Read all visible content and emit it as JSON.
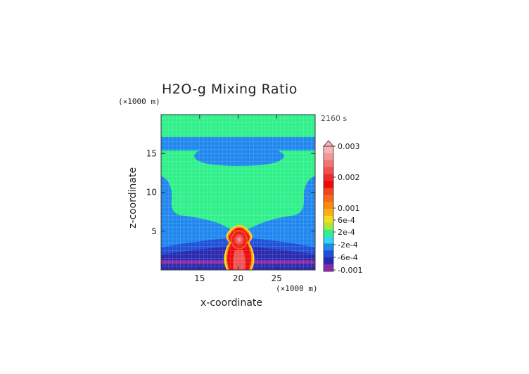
{
  "chart_data": {
    "type": "heatmap",
    "title": "H2O-g Mixing Ratio",
    "time_label": "2160 s",
    "xlabel": "x-coordinate",
    "ylabel": "z-coordinate",
    "x_unit": "(×1000 m)",
    "y_unit": "(×1000 m)",
    "x_range": [
      10,
      30
    ],
    "y_range": [
      0,
      20
    ],
    "x_ticks": [
      15,
      20,
      25
    ],
    "y_ticks": [
      5,
      10,
      15
    ],
    "grid": true,
    "colorbar": {
      "labels": [
        "0.003",
        "0.002",
        "0.001",
        "6e-4",
        "2e-4",
        "-2e-4",
        "-6e-4",
        "-0.001"
      ],
      "levels": [
        0.003,
        0.0027,
        0.0024,
        0.0021,
        0.0018,
        0.0015,
        0.0013,
        0.0011,
        0.0008,
        0.0006,
        0.0004,
        0.0002,
        0,
        -0.0002,
        -0.0004,
        -0.0006,
        -0.0008,
        -0.001
      ],
      "colors": [
        "#f9b5b5",
        "#f69595",
        "#f27474",
        "#f05252",
        "#ee2a2a",
        "#ec0b0b",
        "#f14520",
        "#f76a18",
        "#fa8a10",
        "#fbae14",
        "#f5dc1a",
        "#a8e83a",
        "#2ff08a",
        "#31d7f0",
        "#1f87ee",
        "#1f50d8",
        "#2a2ab0",
        "#8a2aa8"
      ]
    },
    "regions": [
      {
        "name": "background upper layer",
        "value": 0.0001
      },
      {
        "name": "upper-left corner",
        "value": -0.0003
      },
      {
        "name": "upper-right corner",
        "value": -0.0003
      },
      {
        "name": "band near z=16-19",
        "value": -0.0003
      },
      {
        "name": "lens near z=14-16",
        "value": -0.0004
      },
      {
        "name": "flank below z=6",
        "value": -0.0003
      },
      {
        "name": "low layer z<3",
        "value": -0.0006
      },
      {
        "name": "surface layer z<1",
        "value": -0.001
      },
      {
        "name": "central plume core x=19-21, z=0-6",
        "value": 0.003
      }
    ]
  }
}
